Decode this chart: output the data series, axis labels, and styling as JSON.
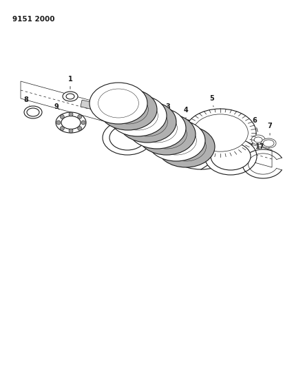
{
  "title_code": "9151 2000",
  "bg": "#ffffff",
  "lc": "#1a1a1a",
  "fig_width": 4.11,
  "fig_height": 5.33,
  "dpi": 100
}
